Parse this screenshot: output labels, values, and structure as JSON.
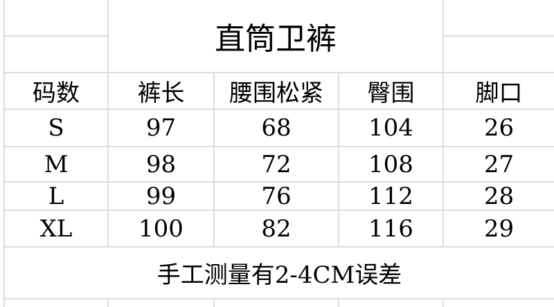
{
  "title": "直筒卫裤",
  "headers": [
    "码数",
    "裤长",
    "腰围松紧",
    "臀围",
    "脚口"
  ],
  "rows": [
    [
      "S",
      "97",
      "68",
      "104",
      "26"
    ],
    [
      "M",
      "98",
      "72",
      "108",
      "27"
    ],
    [
      "L",
      "99",
      "76",
      "112",
      "28"
    ],
    [
      "XL",
      "100",
      "82",
      "116",
      "29"
    ]
  ],
  "note": "手工测量有2-4CM误差"
}
